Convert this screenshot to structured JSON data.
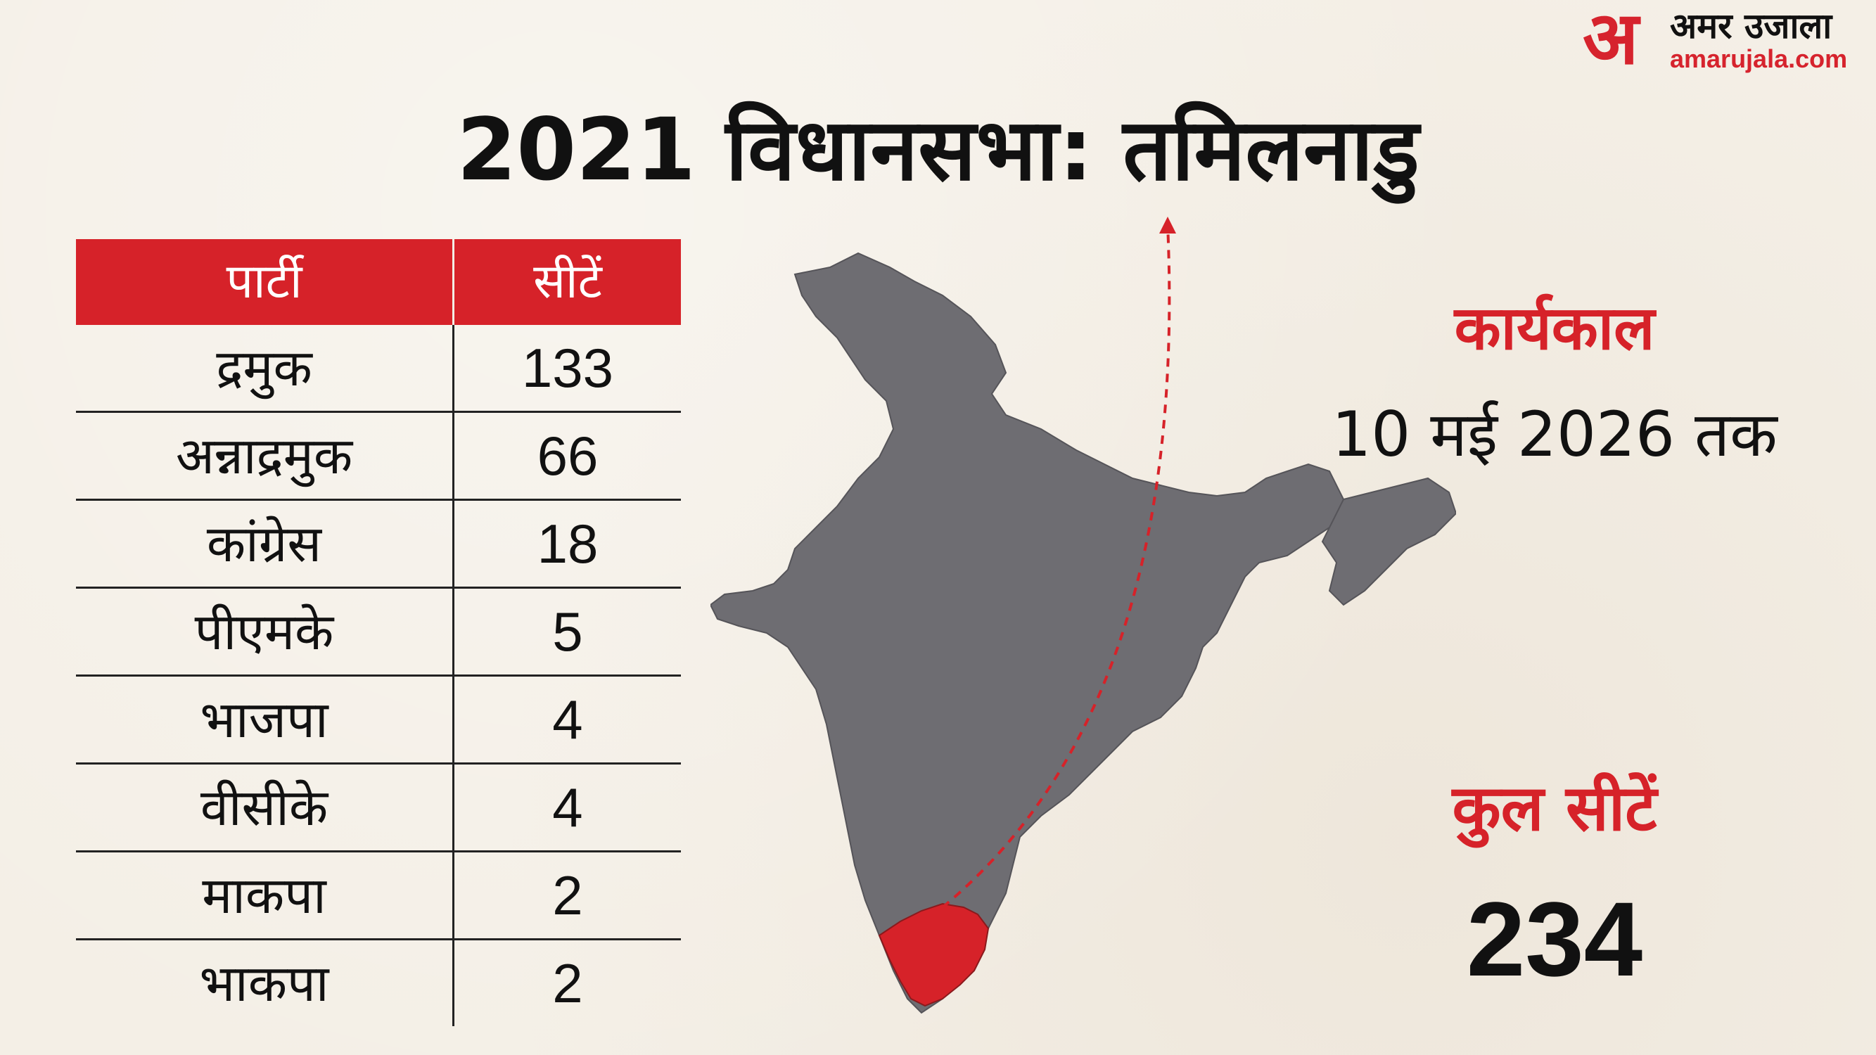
{
  "brand": {
    "logo_mark": "अ",
    "logo_hindi": "अमर उजाला",
    "logo_url_text": "amarujala.com"
  },
  "title": "2021 विधानसभा: तमिलनाडु",
  "term": {
    "label": "कार्यकाल",
    "value": "10 मई 2026 तक"
  },
  "total": {
    "label": "कुल सीटें",
    "value": "234"
  },
  "colors": {
    "accent": "#d62229",
    "map_gray": "#6e6d72",
    "background": "#f4efe6"
  },
  "chart_data": {
    "type": "table",
    "title": "2021 विधानसभा: तमिलनाडु",
    "columns": [
      "पार्टी",
      "सीटें"
    ],
    "rows": [
      {
        "party": "द्रमुक",
        "seats": "133"
      },
      {
        "party": "अन्नाद्रमुक",
        "seats": "66"
      },
      {
        "party": "कांग्रेस",
        "seats": "18"
      },
      {
        "party": "पीएमके",
        "seats": "5"
      },
      {
        "party": "भाजपा",
        "seats": "4"
      },
      {
        "party": "वीसीके",
        "seats": "4"
      },
      {
        "party": "माकपा",
        "seats": "2"
      },
      {
        "party": "भाकपा",
        "seats": "2"
      }
    ],
    "highlighted_region": "तमिलनाडु"
  }
}
